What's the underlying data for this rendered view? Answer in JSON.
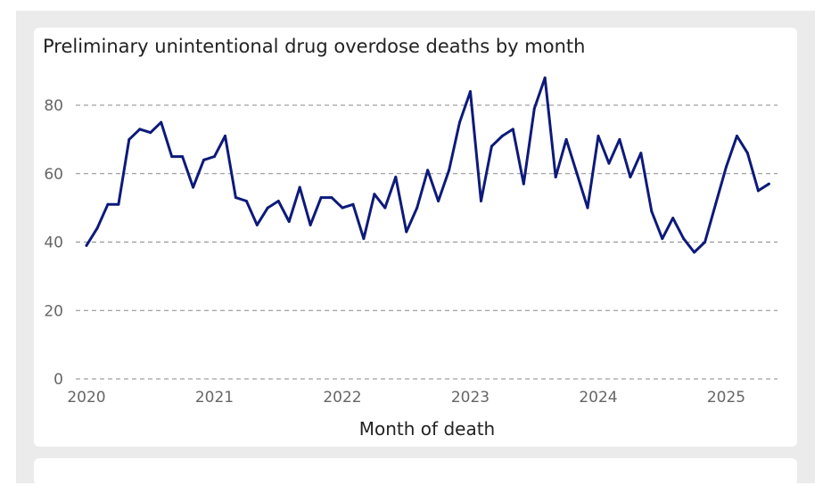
{
  "chart_data": {
    "type": "line",
    "title": "Preliminary unintentional drug overdose deaths by month",
    "xlabel": "Month of death",
    "ylabel": "",
    "ylim": [
      0,
      88
    ],
    "yticks": [
      0,
      20,
      40,
      60,
      80
    ],
    "xticks": [
      "2020",
      "2021",
      "2022",
      "2023",
      "2024",
      "2025"
    ],
    "x_start": "2020-01",
    "grid": "horizontal dashed",
    "series": [
      {
        "color": "#0d1a7a",
        "values": [
          39,
          44,
          51,
          51,
          70,
          73,
          72,
          75,
          65,
          65,
          56,
          64,
          65,
          71,
          53,
          52,
          45,
          50,
          52,
          46,
          56,
          45,
          53,
          53,
          50,
          51,
          41,
          54,
          50,
          59,
          43,
          50,
          61,
          52,
          61,
          75,
          84,
          52,
          68,
          71,
          73,
          57,
          79,
          88,
          59,
          70,
          60,
          50,
          71,
          63,
          70,
          59,
          66,
          49,
          41,
          47,
          41,
          37,
          40,
          51,
          62,
          71,
          66,
          55,
          57
        ]
      }
    ]
  }
}
